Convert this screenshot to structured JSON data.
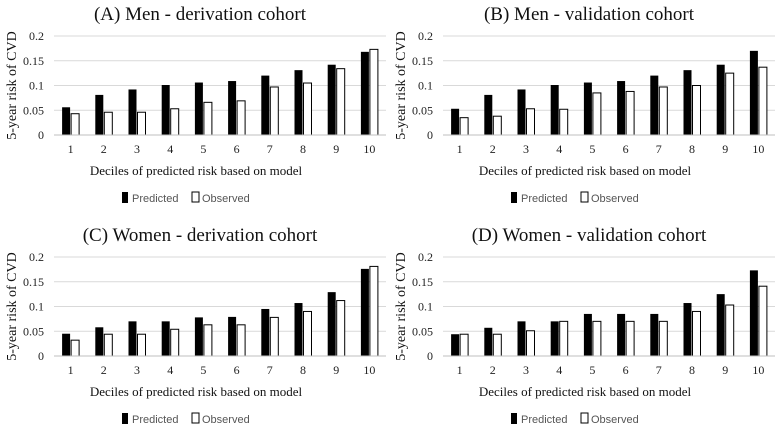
{
  "chart_data": [
    {
      "type": "bar",
      "title": "(A) Men - derivation cohort",
      "xlabel": "Deciles of predicted risk based on model",
      "ylabel": "5-year risk of CVD",
      "categories": [
        "1",
        "2",
        "3",
        "4",
        "5",
        "6",
        "7",
        "8",
        "9",
        "10"
      ],
      "yticks": [
        "0",
        "0.05",
        "0.1",
        "0.15",
        "0.2"
      ],
      "ylim": [
        0,
        0.2
      ],
      "legend": [
        "Predicted",
        "Observed"
      ],
      "series": [
        {
          "name": "Predicted",
          "color": "#000000",
          "values": [
            0.056,
            0.081,
            0.092,
            0.101,
            0.106,
            0.109,
            0.12,
            0.131,
            0.142,
            0.168
          ]
        },
        {
          "name": "Observed",
          "color": "#ffffff",
          "values": [
            0.043,
            0.046,
            0.046,
            0.053,
            0.066,
            0.069,
            0.097,
            0.105,
            0.134,
            0.173
          ]
        }
      ]
    },
    {
      "type": "bar",
      "title": "(B) Men - validation cohort",
      "xlabel": "Deciles of predicted risk based on model",
      "ylabel": "5-year risk of CVD",
      "categories": [
        "1",
        "2",
        "3",
        "4",
        "5",
        "6",
        "7",
        "8",
        "9",
        "10"
      ],
      "yticks": [
        "0",
        "0.05",
        "0.1",
        "0.15",
        "0.2"
      ],
      "ylim": [
        0,
        0.2
      ],
      "legend": [
        "Predicted",
        "Observed"
      ],
      "series": [
        {
          "name": "Predicted",
          "color": "#000000",
          "values": [
            0.053,
            0.081,
            0.092,
            0.101,
            0.106,
            0.109,
            0.12,
            0.131,
            0.142,
            0.17
          ]
        },
        {
          "name": "Observed",
          "color": "#ffffff",
          "values": [
            0.035,
            0.038,
            0.053,
            0.052,
            0.085,
            0.088,
            0.097,
            0.1,
            0.125,
            0.137
          ]
        }
      ]
    },
    {
      "type": "bar",
      "title": "(C) Women - derivation cohort",
      "xlabel": "Deciles of predicted risk based on model",
      "ylabel": "5-year risk of CVD",
      "categories": [
        "1",
        "2",
        "3",
        "4",
        "5",
        "6",
        "7",
        "8",
        "9",
        "10"
      ],
      "yticks": [
        "0",
        "0.05",
        "0.1",
        "0.15",
        "0.2"
      ],
      "ylim": [
        0,
        0.2
      ],
      "legend": [
        "Predicted",
        "Observed"
      ],
      "series": [
        {
          "name": "Predicted",
          "color": "#000000",
          "values": [
            0.045,
            0.058,
            0.07,
            0.07,
            0.078,
            0.079,
            0.095,
            0.107,
            0.129,
            0.176
          ]
        },
        {
          "name": "Observed",
          "color": "#ffffff",
          "values": [
            0.032,
            0.044,
            0.044,
            0.054,
            0.063,
            0.063,
            0.078,
            0.09,
            0.112,
            0.181
          ]
        }
      ]
    },
    {
      "type": "bar",
      "title": "(D) Women - validation cohort",
      "xlabel": "Deciles of predicted risk based on model",
      "ylabel": "5-year risk of CVD",
      "categories": [
        "1",
        "2",
        "3",
        "4",
        "5",
        "6",
        "7",
        "8",
        "9",
        "10"
      ],
      "yticks": [
        "0",
        "0.05",
        "0.1",
        "0.15",
        "0.2"
      ],
      "ylim": [
        0,
        0.2
      ],
      "legend": [
        "Predicted",
        "Observed"
      ],
      "series": [
        {
          "name": "Predicted",
          "color": "#000000",
          "values": [
            0.044,
            0.057,
            0.07,
            0.07,
            0.085,
            0.085,
            0.085,
            0.107,
            0.125,
            0.173
          ]
        },
        {
          "name": "Observed",
          "color": "#ffffff",
          "values": [
            0.044,
            0.044,
            0.051,
            0.07,
            0.07,
            0.07,
            0.07,
            0.09,
            0.103,
            0.141
          ]
        }
      ]
    }
  ]
}
